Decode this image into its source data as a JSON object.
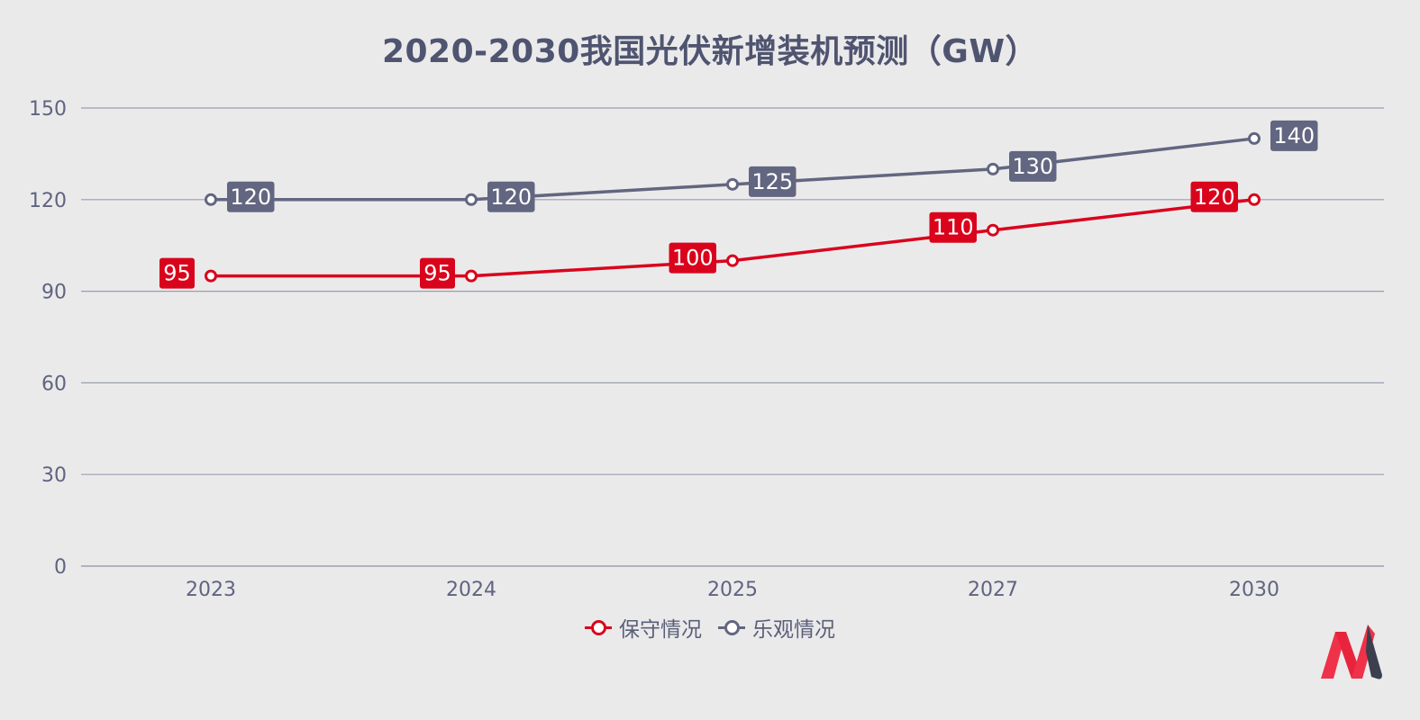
{
  "title": "2020-2030我国光伏新增装机预测（GW）",
  "colors": {
    "background": "#ebeaeb",
    "conservative": "#d9041c",
    "optimistic": "#626680",
    "grid": "#9a9db0",
    "axis_text": "#5f6480",
    "title": "#4f5470"
  },
  "legend": {
    "conservative": "保守情况",
    "optimistic": "乐观情况"
  },
  "logo": {
    "icon": "brand-logo-icon"
  },
  "chart_data": {
    "type": "line",
    "title": "2020-2030我国光伏新增装机预测（GW）",
    "categories": [
      "2023",
      "2024",
      "2025",
      "2027",
      "2030"
    ],
    "ylim": [
      0,
      150
    ],
    "yticks": [
      0,
      30,
      60,
      90,
      120,
      150
    ],
    "grid": true,
    "legend_position": "bottom",
    "data_labels": true,
    "series": [
      {
        "name": "保守情况",
        "values": [
          95,
          95,
          100,
          110,
          120
        ],
        "color": "#d9041c"
      },
      {
        "name": "乐观情况",
        "values": [
          120,
          120,
          125,
          130,
          140
        ],
        "color": "#626680"
      }
    ]
  }
}
